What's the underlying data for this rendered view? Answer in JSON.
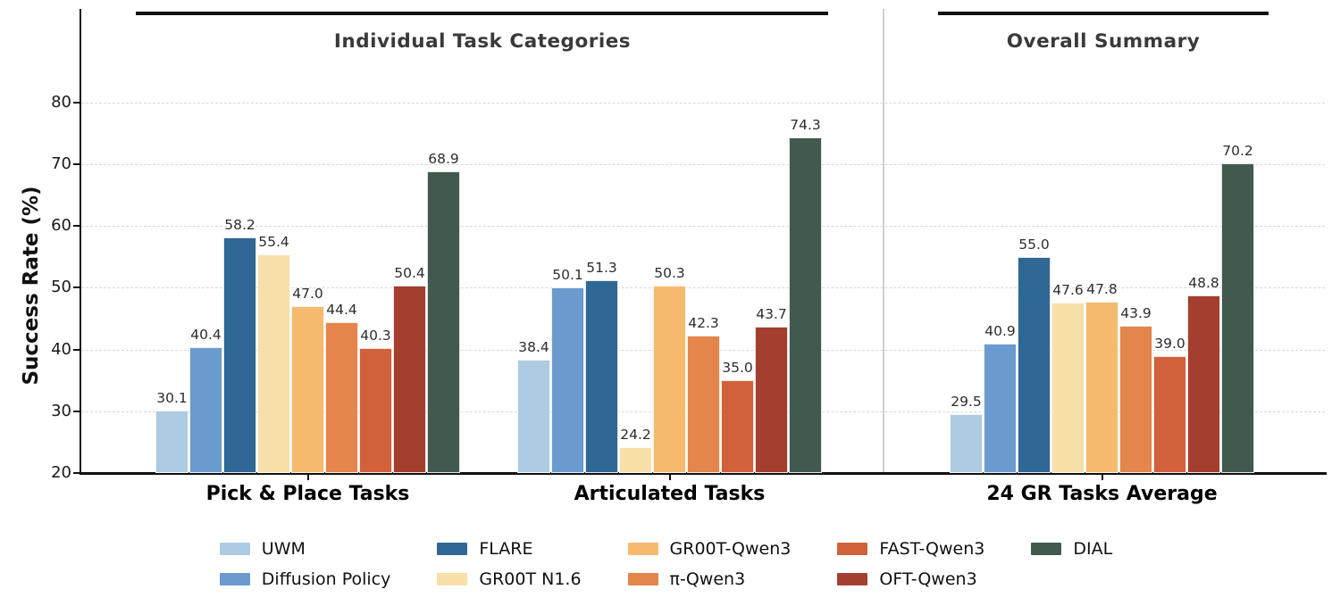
{
  "chart_data": {
    "type": "bar",
    "title": "",
    "ylabel": "Success Rate (%)",
    "xlabel": "",
    "ylim": [
      20,
      95
    ],
    "yticks": [
      20,
      30,
      40,
      50,
      60,
      70,
      80
    ],
    "grid": "horizontal-dashed",
    "legend_position": "bottom-center",
    "categories": [
      "Pick & Place Tasks",
      "Articulated Tasks",
      "24 GR Tasks Average"
    ],
    "sections": [
      {
        "label": "Individual Task Categories",
        "category_indexes": [
          0,
          1
        ]
      },
      {
        "label": "Overall Summary",
        "category_indexes": [
          2
        ]
      }
    ],
    "series": [
      {
        "name": "UWM",
        "color": "#adcbe3",
        "values": [
          30.1,
          38.4,
          29.5
        ]
      },
      {
        "name": "Diffusion Policy",
        "color": "#6b9bce",
        "values": [
          40.4,
          50.1,
          40.9
        ]
      },
      {
        "name": "FLARE",
        "color": "#2f6795",
        "values": [
          58.2,
          51.3,
          55.0
        ]
      },
      {
        "name": "GR00T N1.6",
        "color": "#f7e0a9",
        "values": [
          55.4,
          24.2,
          47.6
        ]
      },
      {
        "name": "GR00T-Qwen3",
        "color": "#f6ba6f",
        "values": [
          47.0,
          50.3,
          47.8
        ]
      },
      {
        "name": "π-Qwen3",
        "color": "#e4854c",
        "values": [
          44.4,
          42.3,
          43.9
        ]
      },
      {
        "name": "FAST-Qwen3",
        "color": "#d0613a",
        "values": [
          40.3,
          35.0,
          39.0
        ]
      },
      {
        "name": "OFT-Qwen3",
        "color": "#a43f30",
        "values": [
          50.4,
          43.7,
          48.8
        ]
      },
      {
        "name": "DIAL",
        "color": "#415a4d",
        "values": [
          68.9,
          74.3,
          70.2
        ]
      }
    ]
  }
}
